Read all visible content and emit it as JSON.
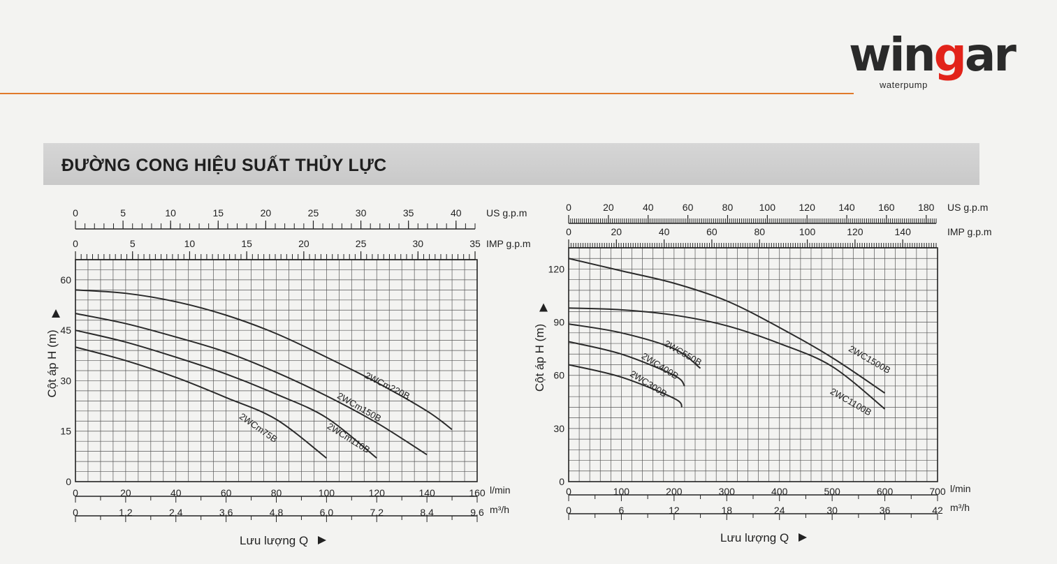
{
  "brand": {
    "name_pre": "win",
    "name_g": "g",
    "name_post": "ar",
    "tagline": "waterpump"
  },
  "section_title": "ĐƯỜNG CONG HIỆU SUẤT THỦY LỰC",
  "colors": {
    "accent_rule": "#e07a2a",
    "brand_red": "#e2231a",
    "grid": "#555555",
    "curve": "#2a2a2a",
    "band": "#cccccc"
  },
  "chart_data": [
    {
      "type": "line",
      "ylabel": "Cột áp H (m)",
      "xlabel": "Lưu lượng Q",
      "ylim": [
        0,
        66
      ],
      "xlim": [
        0,
        160
      ],
      "grid": true,
      "y_ticks": [
        "0",
        "15",
        "30",
        "45",
        "60"
      ],
      "y_tick_values": [
        0,
        15,
        30,
        45,
        60
      ],
      "x_axis_lmin": {
        "unit": "l/min",
        "ticks": [
          "0",
          "20",
          "40",
          "60",
          "80",
          "100",
          "120",
          "140",
          "160"
        ],
        "values": [
          0,
          20,
          40,
          60,
          80,
          100,
          120,
          140,
          160
        ]
      },
      "x_axis_m3h": {
        "unit": "m³/h",
        "ticks": [
          "0",
          "1.2",
          "2.4",
          "3.6",
          "4.8",
          "6.0",
          "7.2",
          "8.4",
          "9.6"
        ],
        "values": [
          0,
          20,
          40,
          60,
          80,
          100,
          120,
          140,
          160
        ]
      },
      "top_axis_us": {
        "unit": "US g.p.m",
        "ticks": [
          "0",
          "5",
          "10",
          "15",
          "20",
          "25",
          "30",
          "35",
          "40"
        ],
        "values": [
          0,
          5,
          10,
          15,
          20,
          25,
          30,
          35,
          40
        ],
        "max": 42
      },
      "top_axis_imp": {
        "unit": "IMP g.p.m",
        "ticks": [
          "0",
          "5",
          "10",
          "15",
          "20",
          "25",
          "30",
          "35"
        ],
        "values": [
          0,
          5,
          10,
          15,
          20,
          25,
          30,
          35
        ],
        "max": 35
      },
      "series": [
        {
          "name": "2WCm220B",
          "x": [
            0,
            20,
            40,
            60,
            80,
            100,
            120,
            140,
            150
          ],
          "y": [
            57,
            56,
            53.5,
            49.5,
            44,
            37,
            29.5,
            21,
            15.5
          ],
          "label_at": [
            115,
            31
          ],
          "label_rotate": 27
        },
        {
          "name": "2WCm150B",
          "x": [
            0,
            20,
            40,
            60,
            80,
            100,
            120,
            140
          ],
          "y": [
            50,
            47,
            43,
            38.5,
            32.5,
            25.5,
            17.5,
            8
          ],
          "label_at": [
            104,
            25
          ],
          "label_rotate": 30
        },
        {
          "name": "2WCm110B",
          "x": [
            0,
            20,
            40,
            60,
            80,
            100,
            120
          ],
          "y": [
            45,
            41.5,
            37,
            32,
            26,
            19,
            7
          ],
          "label_at": [
            100,
            16
          ],
          "label_rotate": 32
        },
        {
          "name": "2WCm75B",
          "x": [
            0,
            20,
            40,
            60,
            80,
            100
          ],
          "y": [
            40,
            36,
            31,
            25,
            18.5,
            7
          ],
          "label_at": [
            65,
            19
          ],
          "label_rotate": 35
        }
      ]
    },
    {
      "type": "line",
      "ylabel": "Cột áp H (m)",
      "xlabel": "Lưu lượng Q",
      "ylim": [
        0,
        132
      ],
      "xlim": [
        0,
        700
      ],
      "grid": true,
      "y_ticks": [
        "0",
        "30",
        "60",
        "90",
        "120"
      ],
      "y_tick_values": [
        0,
        30,
        60,
        90,
        120
      ],
      "x_axis_lmin": {
        "unit": "l/min",
        "ticks": [
          "0",
          "100",
          "200",
          "300",
          "400",
          "500",
          "600",
          "700"
        ],
        "values": [
          0,
          100,
          200,
          300,
          400,
          500,
          600,
          700
        ]
      },
      "x_axis_m3h": {
        "unit": "m³/h",
        "ticks": [
          "0",
          "6",
          "12",
          "18",
          "24",
          "30",
          "36",
          "42"
        ],
        "values": [
          0,
          100,
          200,
          300,
          400,
          500,
          600,
          700
        ]
      },
      "top_axis_us": {
        "unit": "US g.p.m",
        "ticks": [
          "0",
          "20",
          "40",
          "60",
          "80",
          "100",
          "120",
          "140",
          "160",
          "180"
        ],
        "values": [
          0,
          20,
          40,
          60,
          80,
          100,
          120,
          140,
          160,
          180
        ],
        "max": 185
      },
      "top_axis_imp": {
        "unit": "IMP g.p.m",
        "ticks": [
          "0",
          "20",
          "40",
          "60",
          "80",
          "100",
          "120",
          "140"
        ],
        "values": [
          0,
          20,
          40,
          60,
          80,
          100,
          120,
          140
        ],
        "max": 154
      },
      "series": [
        {
          "name": "2WC1500B",
          "x": [
            0,
            100,
            200,
            300,
            400,
            500,
            600
          ],
          "y": [
            126,
            119,
            112,
            102,
            87,
            70,
            50
          ],
          "label_at": [
            530,
            74
          ],
          "label_rotate": 30
        },
        {
          "name": "2WC1100B",
          "x": [
            0,
            100,
            200,
            300,
            400,
            500,
            600
          ],
          "y": [
            98,
            97,
            94,
            88,
            78,
            65,
            41
          ],
          "label_at": [
            495,
            50
          ],
          "label_rotate": 30
        },
        {
          "name": "2WC550B",
          "x": [
            0,
            100,
            200,
            250
          ],
          "y": [
            89,
            84,
            75,
            64
          ],
          "label_at": [
            180,
            77
          ],
          "label_rotate": 30
        },
        {
          "name": "2WC400B",
          "x": [
            0,
            100,
            200,
            220
          ],
          "y": [
            79,
            72,
            60,
            54
          ],
          "label_at": [
            137,
            70
          ],
          "label_rotate": 32
        },
        {
          "name": "2WC300B",
          "x": [
            0,
            100,
            200,
            215
          ],
          "y": [
            66,
            59,
            47,
            42
          ],
          "label_at": [
            115,
            60
          ],
          "label_rotate": 32
        }
      ]
    }
  ]
}
